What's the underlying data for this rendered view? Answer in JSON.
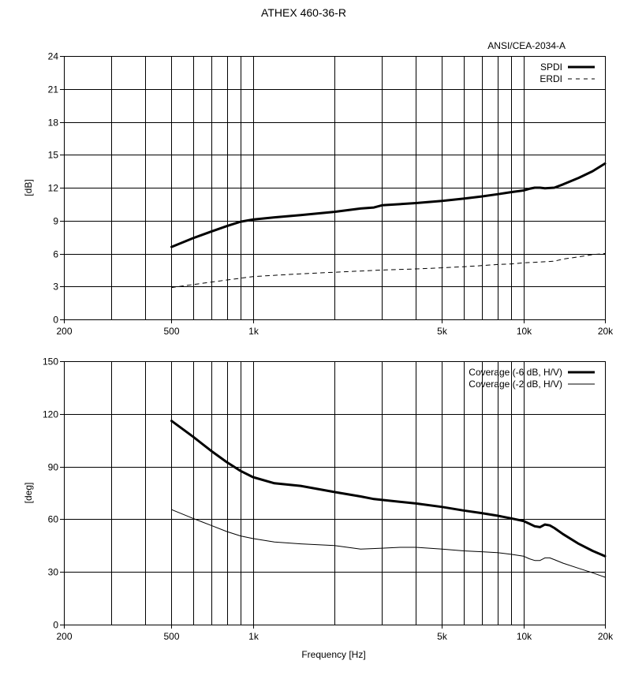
{
  "page": {
    "title": "ATHEX 460-36-R"
  },
  "chart_data": [
    {
      "type": "line",
      "annotation": "ANSI/CEA-2034-A",
      "xlabel": "",
      "ylabel": "[dB]",
      "xscale": "log",
      "xlim": [
        200,
        20000
      ],
      "ylim": [
        0,
        24
      ],
      "x_ticks": [
        200,
        500,
        1000,
        5000,
        10000,
        20000
      ],
      "x_tick_labels": [
        "200",
        "500",
        "1k",
        "5k",
        "10k",
        "20k"
      ],
      "x_gridlines": [
        300,
        400,
        500,
        600,
        700,
        800,
        900,
        1000,
        2000,
        3000,
        4000,
        5000,
        6000,
        7000,
        8000,
        9000,
        10000,
        20000
      ],
      "y_ticks": [
        0,
        3,
        6,
        9,
        12,
        15,
        18,
        21,
        24
      ],
      "y_tick_labels": [
        "0",
        "3",
        "6",
        "9",
        "12",
        "15",
        "18",
        "21",
        "24"
      ],
      "grid": true,
      "legend_position": "top-right",
      "series": [
        {
          "name": "SPDI",
          "style": "thick",
          "color": "#000000",
          "x": [
            500,
            600,
            700,
            800,
            900,
            1000,
            1200,
            1500,
            2000,
            2500,
            2800,
            3000,
            4000,
            5000,
            6000,
            7000,
            8000,
            9000,
            10000,
            10500,
            11000,
            11500,
            12000,
            13000,
            14000,
            16000,
            18000,
            20000
          ],
          "y": [
            6.6,
            7.4,
            8.0,
            8.5,
            8.9,
            9.1,
            9.3,
            9.5,
            9.8,
            10.1,
            10.2,
            10.4,
            10.6,
            10.8,
            11.0,
            11.2,
            11.4,
            11.6,
            11.75,
            11.9,
            12.0,
            12.0,
            11.95,
            12.0,
            12.3,
            12.9,
            13.5,
            14.2
          ]
        },
        {
          "name": "ERDI",
          "style": "dashed",
          "color": "#000000",
          "x": [
            500,
            700,
            1000,
            1500,
            2000,
            3000,
            4000,
            5000,
            6000,
            7000,
            8000,
            9000,
            10000,
            11000,
            12000,
            13000,
            14000,
            16000,
            18000,
            20000
          ],
          "y": [
            2.9,
            3.4,
            3.9,
            4.15,
            4.3,
            4.5,
            4.6,
            4.7,
            4.8,
            4.9,
            5.0,
            5.05,
            5.15,
            5.2,
            5.25,
            5.3,
            5.5,
            5.7,
            5.9,
            6.0
          ]
        }
      ]
    },
    {
      "type": "line",
      "annotation": "",
      "xlabel": "Frequency [Hz]",
      "ylabel": "[deg]",
      "xscale": "log",
      "xlim": [
        200,
        20000
      ],
      "ylim": [
        0,
        150
      ],
      "x_ticks": [
        200,
        500,
        1000,
        5000,
        10000,
        20000
      ],
      "x_tick_labels": [
        "200",
        "500",
        "1k",
        "5k",
        "10k",
        "20k"
      ],
      "x_gridlines": [
        300,
        400,
        500,
        600,
        700,
        800,
        900,
        1000,
        2000,
        3000,
        4000,
        5000,
        6000,
        7000,
        8000,
        9000,
        10000,
        20000
      ],
      "y_ticks": [
        0,
        30,
        60,
        90,
        120,
        150
      ],
      "y_tick_labels": [
        "0",
        "30",
        "60",
        "90",
        "120",
        "150"
      ],
      "grid": true,
      "legend_position": "top-right",
      "series": [
        {
          "name": "Coverage (-6 dB, H/V)",
          "style": "thick",
          "color": "#000000",
          "x": [
            500,
            600,
            700,
            800,
            900,
            1000,
            1200,
            1500,
            2000,
            2500,
            2800,
            3000,
            4000,
            5000,
            6000,
            7000,
            8000,
            9000,
            10000,
            10500,
            11000,
            11500,
            12000,
            12500,
            13000,
            14000,
            16000,
            18000,
            20000
          ],
          "y": [
            116,
            107,
            99,
            92.5,
            87.5,
            84,
            80.5,
            79,
            75.5,
            73,
            71.5,
            71,
            69,
            67,
            65,
            63.5,
            62,
            60.5,
            59,
            57.5,
            56,
            55.5,
            57,
            56.5,
            55,
            51.5,
            46,
            42,
            39
          ]
        },
        {
          "name": "Coverage (-2 dB, H/V)",
          "style": "thin",
          "color": "#000000",
          "x": [
            500,
            600,
            700,
            800,
            900,
            1000,
            1200,
            1500,
            2000,
            2500,
            3000,
            3500,
            4000,
            5000,
            6000,
            7000,
            8000,
            9000,
            10000,
            10500,
            11000,
            11500,
            12000,
            12500,
            13000,
            14000,
            16000,
            18000,
            20000
          ],
          "y": [
            65.5,
            60.5,
            56.5,
            53,
            50.5,
            49,
            47,
            46,
            45,
            43,
            43.5,
            44,
            44,
            43,
            42,
            41.5,
            41,
            40,
            39,
            37.5,
            36.5,
            36.5,
            38,
            38,
            37,
            35,
            32,
            29.5,
            27
          ]
        }
      ]
    }
  ]
}
